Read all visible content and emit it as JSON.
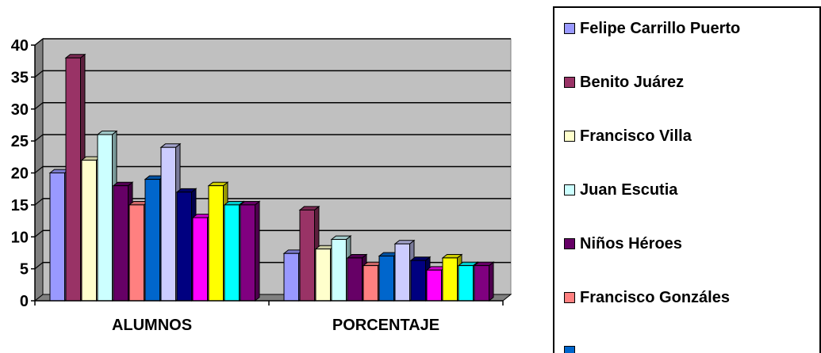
{
  "chart_data": {
    "type": "bar",
    "categories": [
      "ALUMNOS",
      "PORCENTAJE"
    ],
    "ylim": [
      0,
      40
    ],
    "yticks": [
      0,
      5,
      10,
      15,
      20,
      25,
      30,
      35,
      40
    ],
    "grid": true,
    "legend_position": "right",
    "series": [
      {
        "name": "Felipe Carrillo Puerto",
        "values": [
          20,
          7.4
        ],
        "color": "#9999ff"
      },
      {
        "name": "Benito Juárez",
        "values": [
          38,
          14.2
        ],
        "color": "#993366"
      },
      {
        "name": "Francisco Villa",
        "values": [
          22,
          8.1
        ],
        "color": "#ffffcc"
      },
      {
        "name": "Juan Escutia",
        "values": [
          26,
          9.6
        ],
        "color": "#ccffff"
      },
      {
        "name": "Niños Héroes",
        "values": [
          18,
          6.7
        ],
        "color": "#660066"
      },
      {
        "name": "Francisco Gonzáles",
        "values": [
          15,
          5.5
        ],
        "color": "#ff8080"
      },
      {
        "name": null,
        "values": [
          19,
          7.0
        ],
        "color": "#0066cc"
      },
      {
        "name": null,
        "values": [
          24,
          8.9
        ],
        "color": "#ccccff"
      },
      {
        "name": null,
        "values": [
          17,
          6.3
        ],
        "color": "#000080"
      },
      {
        "name": null,
        "values": [
          13,
          4.8
        ],
        "color": "#ff00ff"
      },
      {
        "name": null,
        "values": [
          18,
          6.7
        ],
        "color": "#ffff00"
      },
      {
        "name": null,
        "values": [
          15,
          5.5
        ],
        "color": "#00ffff"
      },
      {
        "name": null,
        "values": [
          15,
          5.5
        ],
        "color": "#800080"
      }
    ],
    "colors": {
      "plot_background": "#c0c0c0",
      "grid": "#000000"
    }
  }
}
